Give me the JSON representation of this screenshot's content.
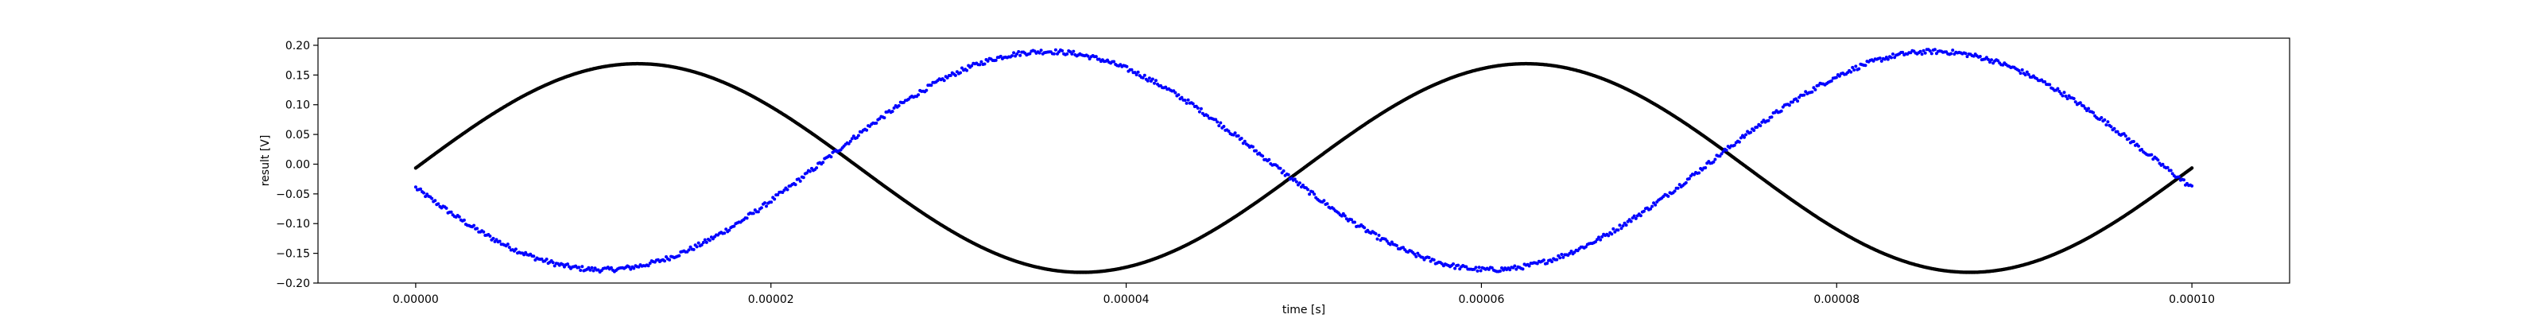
{
  "chart_data": {
    "type": "scatter",
    "xlabel": "time [s]",
    "ylabel": "result [V]",
    "xlim": [
      -5.5e-06,
      0.0001055
    ],
    "ylim": [
      -0.2,
      0.212
    ],
    "grid": false,
    "x_ticks": [
      0.0,
      2e-05,
      4e-05,
      6e-05,
      8e-05,
      0.0001
    ],
    "x_tick_labels": [
      "0.00000",
      "0.00002",
      "0.00004",
      "0.00006",
      "0.00008",
      "0.00010"
    ],
    "y_ticks": [
      -0.2,
      -0.15,
      -0.1,
      -0.05,
      0.0,
      0.05,
      0.1,
      0.15,
      0.2
    ],
    "y_tick_labels": [
      "−0.20",
      "−0.15",
      "−0.10",
      "−0.05",
      "0.00",
      "0.05",
      "0.10",
      "0.15",
      "0.20"
    ],
    "series": [
      {
        "color": "#000000",
        "model": "sine",
        "amplitude": 0.1755,
        "offset": -0.0065,
        "period": 5e-05,
        "zero_crossing": 0.0,
        "x_start": 0.0,
        "x_end": 0.0001
      },
      {
        "color": "#0000ff",
        "model": "sine",
        "amplitude": 0.1835,
        "offset": 0.006,
        "period": 5e-05,
        "zero_crossing": 2.3e-05,
        "x_start": 0.0,
        "x_end": 0.0001
      }
    ]
  }
}
